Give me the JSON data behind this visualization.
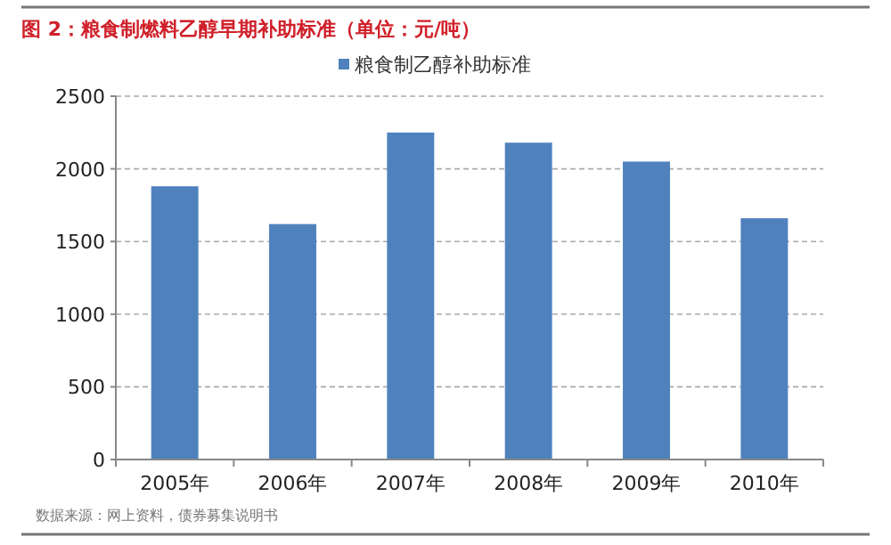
{
  "chart_data": {
    "type": "bar",
    "title": "图 2：粮食制燃料乙醇早期补助标准（单位：元/吨）",
    "categories": [
      "2005年",
      "2006年",
      "2007年",
      "2008年",
      "2009年",
      "2010年"
    ],
    "series": [
      {
        "name": "粮食制乙醇补助标准",
        "color": "#4f81bd",
        "values": [
          1880,
          1620,
          2250,
          2180,
          2050,
          1660
        ]
      }
    ],
    "ylim": [
      0,
      2500
    ],
    "yticks": [
      0,
      500,
      1000,
      1500,
      2000,
      2500
    ],
    "grid": "y",
    "legend": "top",
    "annotations": [
      "数据来源：网上资料，债券募集说明书"
    ]
  }
}
